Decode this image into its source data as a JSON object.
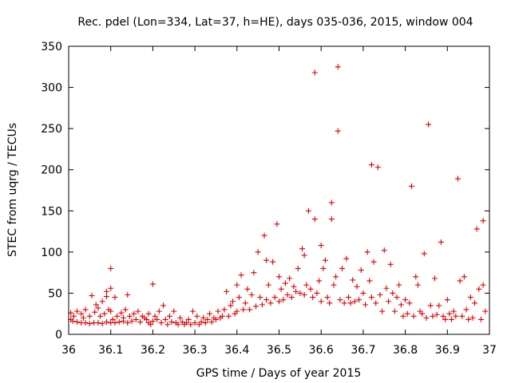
{
  "chart_data": {
    "type": "scatter",
    "title": "Rec. pdel (Lon=334, Lat=37, h=HE), days 035-036, 2015, window 004",
    "xlabel": "GPS time / Days of year 2015",
    "ylabel": "STEC from uqrg / TECUs",
    "xlim": [
      36,
      37
    ],
    "ylim": [
      0,
      350
    ],
    "xticks": [
      36,
      36.1,
      36.2,
      36.3,
      36.4,
      36.5,
      36.6,
      36.7,
      36.8,
      36.9,
      37
    ],
    "yticks": [
      0,
      50,
      100,
      150,
      200,
      250,
      300,
      350
    ],
    "xtick_labels": [
      "36",
      "36.1",
      "36.2",
      "36.3",
      "36.4",
      "36.5",
      "36.6",
      "36.7",
      "36.8",
      "36.9",
      "37"
    ],
    "ytick_labels": [
      "0",
      "50",
      "100",
      "150",
      "200",
      "250",
      "300",
      "350"
    ],
    "marker": "+",
    "color": "#e00000",
    "series": [
      {
        "name": "STEC",
        "points": [
          [
            36.005,
            18
          ],
          [
            36.005,
            26
          ],
          [
            36.01,
            16
          ],
          [
            36.012,
            22
          ],
          [
            36.02,
            15
          ],
          [
            36.02,
            28
          ],
          [
            36.03,
            14
          ],
          [
            36.03,
            25
          ],
          [
            36.035,
            20
          ],
          [
            36.04,
            14
          ],
          [
            36.04,
            30
          ],
          [
            36.05,
            13
          ],
          [
            36.05,
            22
          ],
          [
            36.055,
            47
          ],
          [
            36.06,
            14
          ],
          [
            36.062,
            27
          ],
          [
            36.065,
            36
          ],
          [
            36.07,
            14
          ],
          [
            36.07,
            32
          ],
          [
            36.075,
            22
          ],
          [
            36.08,
            13
          ],
          [
            36.08,
            40
          ],
          [
            36.085,
            25
          ],
          [
            36.09,
            15
          ],
          [
            36.09,
            52
          ],
          [
            36.09,
            46
          ],
          [
            36.095,
            30
          ],
          [
            36.1,
            14
          ],
          [
            36.1,
            56
          ],
          [
            36.1,
            80
          ],
          [
            36.1,
            28
          ],
          [
            36.105,
            18
          ],
          [
            36.11,
            14
          ],
          [
            36.11,
            45
          ],
          [
            36.115,
            22
          ],
          [
            36.12,
            15
          ],
          [
            36.125,
            26
          ],
          [
            36.13,
            16
          ],
          [
            36.13,
            20
          ],
          [
            36.135,
            30
          ],
          [
            36.14,
            48
          ],
          [
            36.14,
            14
          ],
          [
            36.145,
            22
          ],
          [
            36.15,
            16
          ],
          [
            36.155,
            25
          ],
          [
            36.16,
            18
          ],
          [
            36.165,
            28
          ],
          [
            36.17,
            15
          ],
          [
            36.175,
            22
          ],
          [
            36.18,
            20
          ],
          [
            36.185,
            18
          ],
          [
            36.19,
            25
          ],
          [
            36.19,
            14
          ],
          [
            36.195,
            12
          ],
          [
            36.2,
            16
          ],
          [
            36.2,
            61
          ],
          [
            36.205,
            22
          ],
          [
            36.21,
            18
          ],
          [
            36.215,
            28
          ],
          [
            36.22,
            14
          ],
          [
            36.225,
            35
          ],
          [
            36.23,
            18
          ],
          [
            36.235,
            12
          ],
          [
            36.24,
            22
          ],
          [
            36.245,
            15
          ],
          [
            36.25,
            28
          ],
          [
            36.255,
            14
          ],
          [
            36.26,
            12
          ],
          [
            36.265,
            20
          ],
          [
            36.27,
            15
          ],
          [
            36.275,
            12
          ],
          [
            36.28,
            14
          ],
          [
            36.285,
            18
          ],
          [
            36.29,
            12
          ],
          [
            36.295,
            28
          ],
          [
            36.3,
            14
          ],
          [
            36.305,
            22
          ],
          [
            36.31,
            12
          ],
          [
            36.315,
            15
          ],
          [
            36.32,
            20
          ],
          [
            36.325,
            14
          ],
          [
            36.33,
            18
          ],
          [
            36.335,
            25
          ],
          [
            36.34,
            15
          ],
          [
            36.345,
            20
          ],
          [
            36.35,
            18
          ],
          [
            36.355,
            28
          ],
          [
            36.36,
            20
          ],
          [
            36.365,
            22
          ],
          [
            36.37,
            30
          ],
          [
            36.375,
            52
          ],
          [
            36.38,
            22
          ],
          [
            36.385,
            35
          ],
          [
            36.39,
            40
          ],
          [
            36.395,
            25
          ],
          [
            36.4,
            28
          ],
          [
            36.4,
            60
          ],
          [
            36.405,
            45
          ],
          [
            36.41,
            72
          ],
          [
            36.415,
            30
          ],
          [
            36.42,
            38
          ],
          [
            36.425,
            55
          ],
          [
            36.43,
            30
          ],
          [
            36.435,
            48
          ],
          [
            36.44,
            75
          ],
          [
            36.445,
            34
          ],
          [
            36.45,
            100
          ],
          [
            36.455,
            45
          ],
          [
            36.46,
            36
          ],
          [
            36.465,
            120
          ],
          [
            36.47,
            42
          ],
          [
            36.47,
            90
          ],
          [
            36.475,
            60
          ],
          [
            36.48,
            38
          ],
          [
            36.485,
            88
          ],
          [
            36.49,
            45
          ],
          [
            36.495,
            134
          ],
          [
            36.5,
            40
          ],
          [
            36.5,
            70
          ],
          [
            36.505,
            55
          ],
          [
            36.51,
            42
          ],
          [
            36.515,
            62
          ],
          [
            36.52,
            48
          ],
          [
            36.525,
            68
          ],
          [
            36.53,
            45
          ],
          [
            36.535,
            58
          ],
          [
            36.54,
            52
          ],
          [
            36.545,
            80
          ],
          [
            36.55,
            50
          ],
          [
            36.555,
            104
          ],
          [
            36.56,
            48
          ],
          [
            36.56,
            96
          ],
          [
            36.565,
            60
          ],
          [
            36.57,
            150
          ],
          [
            36.575,
            55
          ],
          [
            36.58,
            45
          ],
          [
            36.585,
            318
          ],
          [
            36.585,
            140
          ],
          [
            36.59,
            50
          ],
          [
            36.595,
            65
          ],
          [
            36.6,
            40
          ],
          [
            36.6,
            108
          ],
          [
            36.605,
            80
          ],
          [
            36.61,
            90
          ],
          [
            36.615,
            45
          ],
          [
            36.62,
            38
          ],
          [
            36.625,
            160
          ],
          [
            36.625,
            140
          ],
          [
            36.63,
            60
          ],
          [
            36.635,
            70
          ],
          [
            36.64,
            325
          ],
          [
            36.64,
            247
          ],
          [
            36.645,
            42
          ],
          [
            36.65,
            80
          ],
          [
            36.655,
            38
          ],
          [
            36.66,
            92
          ],
          [
            36.665,
            45
          ],
          [
            36.67,
            38
          ],
          [
            36.675,
            66
          ],
          [
            36.68,
            40
          ],
          [
            36.685,
            58
          ],
          [
            36.69,
            42
          ],
          [
            36.695,
            78
          ],
          [
            36.7,
            50
          ],
          [
            36.705,
            36
          ],
          [
            36.71,
            100
          ],
          [
            36.715,
            65
          ],
          [
            36.72,
            45
          ],
          [
            36.72,
            206
          ],
          [
            36.725,
            88
          ],
          [
            36.73,
            38
          ],
          [
            36.735,
            203
          ],
          [
            36.74,
            48
          ],
          [
            36.745,
            28
          ],
          [
            36.75,
            102
          ],
          [
            36.755,
            56
          ],
          [
            36.76,
            40
          ],
          [
            36.765,
            85
          ],
          [
            36.77,
            50
          ],
          [
            36.775,
            28
          ],
          [
            36.78,
            45
          ],
          [
            36.785,
            60
          ],
          [
            36.79,
            36
          ],
          [
            36.795,
            22
          ],
          [
            36.8,
            42
          ],
          [
            36.805,
            25
          ],
          [
            36.81,
            38
          ],
          [
            36.815,
            180
          ],
          [
            36.82,
            22
          ],
          [
            36.825,
            70
          ],
          [
            36.83,
            60
          ],
          [
            36.835,
            28
          ],
          [
            36.84,
            25
          ],
          [
            36.845,
            98
          ],
          [
            36.85,
            20
          ],
          [
            36.855,
            255
          ],
          [
            36.86,
            35
          ],
          [
            36.865,
            22
          ],
          [
            36.87,
            68
          ],
          [
            36.875,
            24
          ],
          [
            36.88,
            35
          ],
          [
            36.885,
            112
          ],
          [
            36.89,
            22
          ],
          [
            36.895,
            18
          ],
          [
            36.9,
            42
          ],
          [
            36.905,
            25
          ],
          [
            36.91,
            18
          ],
          [
            36.915,
            28
          ],
          [
            36.92,
            22
          ],
          [
            36.925,
            189
          ],
          [
            36.93,
            65
          ],
          [
            36.935,
            22
          ],
          [
            36.94,
            70
          ],
          [
            36.945,
            30
          ],
          [
            36.95,
            18
          ],
          [
            36.955,
            45
          ],
          [
            36.96,
            20
          ],
          [
            36.965,
            38
          ],
          [
            36.97,
            128
          ],
          [
            36.975,
            55
          ],
          [
            36.98,
            18
          ],
          [
            36.985,
            138
          ],
          [
            36.985,
            60
          ],
          [
            36.99,
            28
          ]
        ]
      }
    ]
  }
}
